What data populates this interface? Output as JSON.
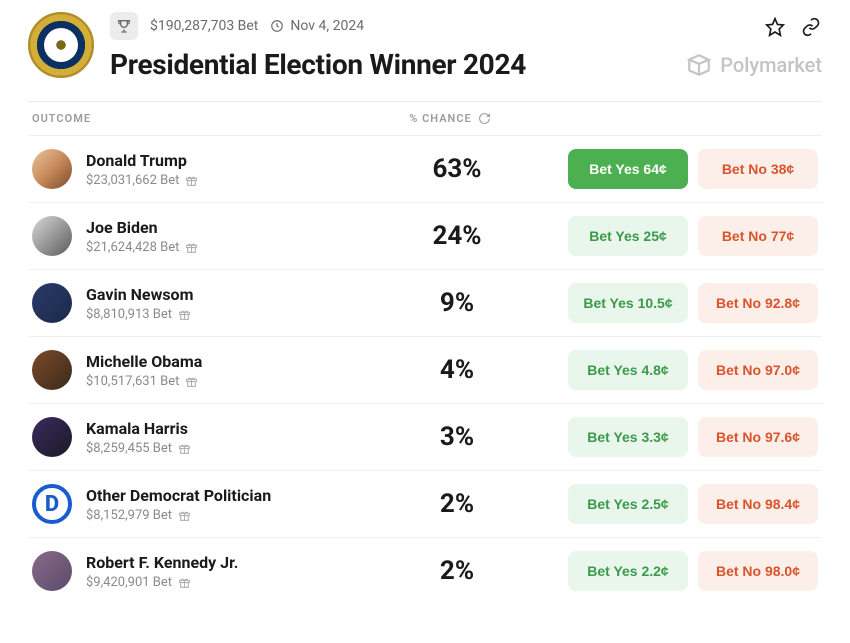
{
  "meta": {
    "bet_total": "$190,287,703 Bet",
    "date": "Nov 4, 2024",
    "title": "Presidential Election Winner 2024",
    "brand": "Polymarket"
  },
  "columns": {
    "outcome": "OUTCOME",
    "chance": "% CHANCE"
  },
  "colors": {
    "bg": "#ffffff",
    "text": "#1a1a1a",
    "muted": "#8a8a8a",
    "border": "#f0f0f0",
    "yes_solid_bg": "#4caf50",
    "yes_solid_text": "#ffffff",
    "yes_soft_bg": "#e9f6ec",
    "yes_soft_text": "#3a9a4a",
    "no_soft_bg": "#fcefea",
    "no_soft_text": "#d9542b",
    "brand": "#c4c4c4"
  },
  "outcomes": [
    {
      "name": "Donald Trump",
      "bet": "$23,031,662 Bet",
      "chance": "63%",
      "yes_label": "Bet Yes 64¢",
      "no_label": "Bet No 38¢",
      "yes_solid": true,
      "avatar_bg": "linear-gradient(135deg,#e8c49a 0%,#c78a5b 50%,#7a4a2a 100%)"
    },
    {
      "name": "Joe Biden",
      "bet": "$21,624,428 Bet",
      "chance": "24%",
      "yes_label": "Bet Yes 25¢",
      "no_label": "Bet No 77¢",
      "yes_solid": false,
      "avatar_bg": "linear-gradient(135deg,#d8d8d8 0%,#9a9a9a 50%,#5a5a5a 100%)"
    },
    {
      "name": "Gavin Newsom",
      "bet": "$8,810,913 Bet",
      "chance": "9%",
      "yes_label": "Bet Yes 10.5¢",
      "no_label": "Bet No 92.8¢",
      "yes_solid": false,
      "avatar_bg": "linear-gradient(135deg,#2a3a6a 0%,#1a2a4a 100%)"
    },
    {
      "name": "Michelle Obama",
      "bet": "$10,517,631 Bet",
      "chance": "4%",
      "yes_label": "Bet Yes 4.8¢",
      "no_label": "Bet No 97.0¢",
      "yes_solid": false,
      "avatar_bg": "linear-gradient(135deg,#7a4a2a 0%,#3a2a1a 100%)"
    },
    {
      "name": "Kamala Harris",
      "bet": "$8,259,455 Bet",
      "chance": "3%",
      "yes_label": "Bet Yes 3.3¢",
      "no_label": "Bet No 97.6¢",
      "yes_solid": false,
      "avatar_bg": "linear-gradient(135deg,#3a2a5a 0%,#1a1a2a 100%)"
    },
    {
      "name": "Other Democrat Politician",
      "bet": "$8,152,979 Bet",
      "chance": "2%",
      "yes_label": "Bet Yes 2.5¢",
      "no_label": "Bet No 98.4¢",
      "yes_solid": false,
      "avatar_special": "democrat"
    },
    {
      "name": "Robert F. Kennedy Jr.",
      "bet": "$9,420,901 Bet",
      "chance": "2%",
      "yes_label": "Bet Yes 2.2¢",
      "no_label": "Bet No 98.0¢",
      "yes_solid": false,
      "avatar_bg": "linear-gradient(135deg,#8a6a8a 0%,#5a4a6a 100%)"
    }
  ]
}
